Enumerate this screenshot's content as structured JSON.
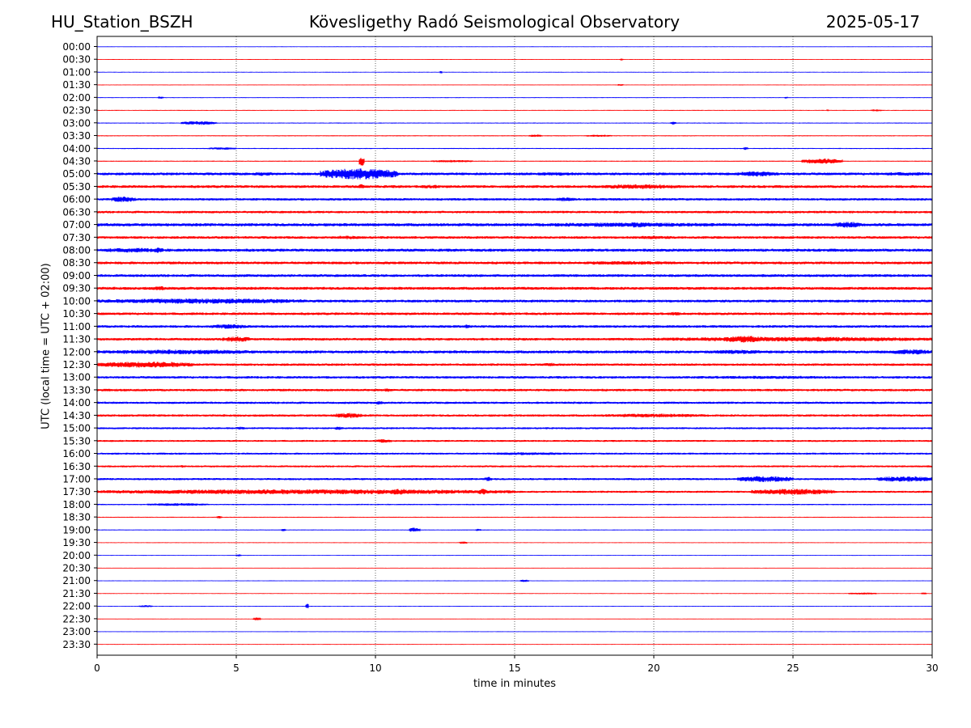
{
  "header": {
    "station": "HU_Station_BSZH",
    "observatory": "Kövesligethy Radó Seismological Observatory",
    "date": "2025-05-17"
  },
  "chart_data": {
    "type": "line",
    "chart_kind": "helicorder (seismogram drum plot)",
    "xlabel": "time in minutes",
    "ylabel": "UTC (local time = UTC + 02:00)",
    "xlim": [
      0,
      30
    ],
    "xticks": [
      0,
      5,
      10,
      15,
      20,
      25,
      30
    ],
    "vertical_grid": "dotted at 5-minute intervals",
    "trace_colors": [
      "#0000ff",
      "#ff0000"
    ],
    "rows": [
      {
        "label": "00:00",
        "activity": [
          [
            0,
            30,
            0.2
          ]
        ]
      },
      {
        "label": "00:30",
        "activity": [
          [
            0,
            30,
            0.2
          ],
          [
            18.8,
            18.9,
            1.2
          ]
        ]
      },
      {
        "label": "01:00",
        "activity": [
          [
            0,
            30,
            0.2
          ],
          [
            12.3,
            12.4,
            1.5
          ]
        ]
      },
      {
        "label": "01:30",
        "activity": [
          [
            0,
            30,
            0.2
          ],
          [
            18.7,
            18.9,
            1.0
          ]
        ]
      },
      {
        "label": "02:00",
        "activity": [
          [
            0,
            30,
            0.25
          ],
          [
            2.2,
            2.4,
            1.4
          ],
          [
            24.7,
            24.8,
            1.2
          ]
        ]
      },
      {
        "label": "02:30",
        "activity": [
          [
            0,
            30,
            0.25
          ],
          [
            26.2,
            26.3,
            1.0
          ],
          [
            27.8,
            28.2,
            1.0
          ]
        ]
      },
      {
        "label": "03:00",
        "activity": [
          [
            0,
            30,
            0.3
          ],
          [
            3.0,
            4.3,
            2.0
          ],
          [
            20.6,
            20.8,
            1.6
          ]
        ]
      },
      {
        "label": "03:30",
        "activity": [
          [
            0,
            30,
            0.35
          ],
          [
            15.5,
            16.0,
            1.2
          ],
          [
            17.5,
            18.5,
            1.0
          ]
        ]
      },
      {
        "label": "04:00",
        "activity": [
          [
            0,
            30,
            0.35
          ],
          [
            4.0,
            5.0,
            1.2
          ],
          [
            23.2,
            23.4,
            1.6
          ]
        ]
      },
      {
        "label": "04:30",
        "activity": [
          [
            0,
            30,
            0.35
          ],
          [
            9.4,
            9.6,
            6.0
          ],
          [
            12.0,
            13.5,
            1.2
          ],
          [
            25.3,
            26.8,
            3.0
          ]
        ]
      },
      {
        "label": "05:00",
        "activity": [
          [
            0,
            30,
            1.4
          ],
          [
            5.5,
            6.5,
            2.2
          ],
          [
            8.0,
            10.8,
            6.5
          ],
          [
            15.5,
            17.5,
            2.0
          ],
          [
            23.0,
            24.5,
            3.0
          ],
          [
            28.0,
            30,
            2.0
          ]
        ]
      },
      {
        "label": "05:30",
        "activity": [
          [
            0,
            30,
            1.4
          ],
          [
            9.4,
            9.6,
            3.0
          ],
          [
            11.5,
            12.5,
            2.0
          ],
          [
            18.0,
            21.0,
            2.6
          ]
        ]
      },
      {
        "label": "06:00",
        "activity": [
          [
            0,
            30,
            1.2
          ],
          [
            0.5,
            1.4,
            3.2
          ],
          [
            16.5,
            17.2,
            2.2
          ]
        ]
      },
      {
        "label": "06:30",
        "activity": [
          [
            0,
            30,
            1.2
          ]
        ]
      },
      {
        "label": "07:00",
        "activity": [
          [
            0,
            30,
            1.6
          ],
          [
            15.0,
            23.0,
            2.4
          ],
          [
            19.0,
            19.8,
            3.2
          ],
          [
            26.5,
            27.5,
            3.5
          ]
        ]
      },
      {
        "label": "07:30",
        "activity": [
          [
            0,
            30,
            1.3
          ],
          [
            8.5,
            9.5,
            2.0
          ],
          [
            19.0,
            21.0,
            1.8
          ]
        ]
      },
      {
        "label": "08:00",
        "activity": [
          [
            0,
            30,
            1.5
          ],
          [
            0,
            2.5,
            2.5
          ],
          [
            2.0,
            2.4,
            3.2
          ]
        ]
      },
      {
        "label": "08:30",
        "activity": [
          [
            0,
            30,
            1.4
          ],
          [
            17.0,
            21.0,
            2.0
          ]
        ]
      },
      {
        "label": "09:00",
        "activity": [
          [
            0,
            30,
            1.4
          ]
        ]
      },
      {
        "label": "09:30",
        "activity": [
          [
            0,
            30,
            1.5
          ],
          [
            2.0,
            2.5,
            2.5
          ]
        ]
      },
      {
        "label": "10:00",
        "activity": [
          [
            0,
            30,
            1.4
          ],
          [
            0,
            7.5,
            3.0
          ]
        ]
      },
      {
        "label": "10:30",
        "activity": [
          [
            0,
            30,
            1.3
          ],
          [
            20.5,
            21.0,
            2.0
          ]
        ]
      },
      {
        "label": "11:00",
        "activity": [
          [
            0,
            30,
            1.3
          ],
          [
            4.0,
            5.5,
            2.5
          ],
          [
            13.2,
            13.4,
            2.4
          ]
        ]
      },
      {
        "label": "11:30",
        "activity": [
          [
            0,
            30,
            1.3
          ],
          [
            4.5,
            5.5,
            3.2
          ],
          [
            20.0,
            30,
            2.6
          ],
          [
            22.5,
            24.0,
            4.0
          ]
        ]
      },
      {
        "label": "12:00",
        "activity": [
          [
            0,
            30,
            1.5
          ],
          [
            0,
            6.0,
            2.6
          ],
          [
            22.0,
            24.0,
            2.4
          ],
          [
            28.5,
            30,
            3.0
          ]
        ]
      },
      {
        "label": "12:30",
        "activity": [
          [
            0,
            30,
            1.2
          ],
          [
            0,
            3.5,
            3.5
          ],
          [
            16.0,
            16.5,
            2.0
          ]
        ]
      },
      {
        "label": "13:00",
        "activity": [
          [
            0,
            30,
            1.2
          ],
          [
            20.0,
            28.0,
            1.6
          ]
        ]
      },
      {
        "label": "13:30",
        "activity": [
          [
            0,
            30,
            1.2
          ],
          [
            10.3,
            10.6,
            2.0
          ]
        ]
      },
      {
        "label": "14:00",
        "activity": [
          [
            0,
            30,
            1.1
          ],
          [
            10.0,
            10.3,
            2.0
          ]
        ]
      },
      {
        "label": "14:30",
        "activity": [
          [
            0,
            30,
            1.1
          ],
          [
            8.5,
            9.5,
            3.0
          ],
          [
            18.0,
            22.0,
            2.0
          ]
        ]
      },
      {
        "label": "15:00",
        "activity": [
          [
            0,
            30,
            0.9
          ],
          [
            5.0,
            5.3,
            1.8
          ],
          [
            8.5,
            8.8,
            1.8
          ]
        ]
      },
      {
        "label": "15:30",
        "activity": [
          [
            0,
            30,
            0.9
          ],
          [
            10.0,
            10.6,
            2.0
          ]
        ]
      },
      {
        "label": "16:00",
        "activity": [
          [
            0,
            30,
            0.9
          ],
          [
            14.0,
            17.0,
            1.5
          ]
        ]
      },
      {
        "label": "16:30",
        "activity": [
          [
            0,
            30,
            0.9
          ],
          [
            3.0,
            3.2,
            1.6
          ]
        ]
      },
      {
        "label": "17:00",
        "activity": [
          [
            0,
            30,
            1.0
          ],
          [
            13.9,
            14.2,
            2.5
          ],
          [
            23.0,
            25.0,
            3.5
          ],
          [
            28.0,
            30,
            3.2
          ]
        ]
      },
      {
        "label": "17:30",
        "activity": [
          [
            0,
            30,
            1.0
          ],
          [
            0,
            15.0,
            2.8
          ],
          [
            10.5,
            11.2,
            3.5
          ],
          [
            13.7,
            14.0,
            3.5
          ],
          [
            23.5,
            26.5,
            3.5
          ]
        ]
      },
      {
        "label": "18:00",
        "activity": [
          [
            0,
            30,
            0.5
          ],
          [
            1.8,
            4.0,
            1.4
          ]
        ]
      },
      {
        "label": "18:30",
        "activity": [
          [
            0,
            30,
            0.3
          ],
          [
            4.3,
            4.5,
            1.2
          ]
        ]
      },
      {
        "label": "19:00",
        "activity": [
          [
            0,
            30,
            0.3
          ],
          [
            6.6,
            6.8,
            1.2
          ],
          [
            11.2,
            11.6,
            2.4
          ],
          [
            13.6,
            13.8,
            1.2
          ]
        ]
      },
      {
        "label": "19:30",
        "activity": [
          [
            0,
            30,
            0.2
          ],
          [
            13.0,
            13.3,
            1.2
          ]
        ]
      },
      {
        "label": "20:00",
        "activity": [
          [
            0,
            30,
            0.2
          ],
          [
            5.0,
            5.2,
            1.2
          ]
        ]
      },
      {
        "label": "20:30",
        "activity": [
          [
            0,
            30,
            0.2
          ]
        ]
      },
      {
        "label": "21:00",
        "activity": [
          [
            0,
            30,
            0.2
          ],
          [
            15.2,
            15.5,
            1.4
          ]
        ]
      },
      {
        "label": "21:30",
        "activity": [
          [
            0,
            30,
            0.2
          ],
          [
            27.0,
            28.0,
            1.0
          ],
          [
            29.6,
            29.8,
            1.0
          ]
        ]
      },
      {
        "label": "22:00",
        "activity": [
          [
            0,
            30,
            0.2
          ],
          [
            1.5,
            2.0,
            1.0
          ],
          [
            7.5,
            7.6,
            3.5
          ]
        ]
      },
      {
        "label": "22:30",
        "activity": [
          [
            0,
            30,
            0.2
          ],
          [
            5.6,
            5.9,
            1.8
          ]
        ]
      },
      {
        "label": "23:00",
        "activity": [
          [
            0,
            30,
            0.2
          ]
        ]
      },
      {
        "label": "23:30",
        "activity": [
          [
            0,
            30,
            0.2
          ]
        ]
      }
    ]
  }
}
